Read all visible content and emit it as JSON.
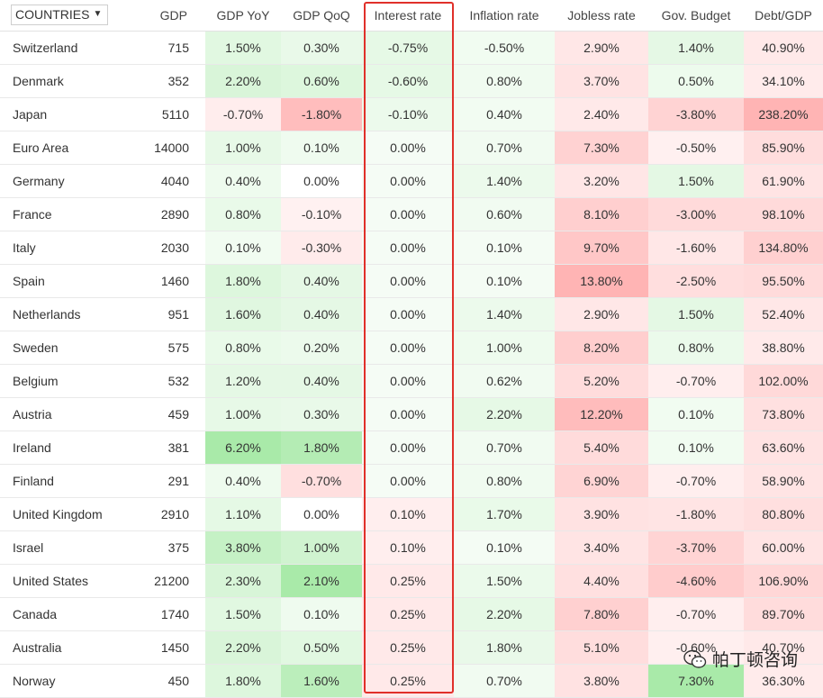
{
  "header": {
    "countries_dropdown": "COUNTRIES",
    "columns": [
      "GDP",
      "GDP YoY",
      "GDP QoQ",
      "Interest rate",
      "Inflation rate",
      "Jobless rate",
      "Gov. Budget",
      "Debt/GDP"
    ]
  },
  "rows": [
    {
      "country": "Switzerland",
      "gdp": "715",
      "gdp_yoy": "1.50%",
      "gdp_qoq": "0.30%",
      "interest_rate": "-0.75%",
      "inflation_rate": "-0.50%",
      "jobless_rate": "2.90%",
      "gov_budget": "1.40%",
      "debt_gdp": "40.90%"
    },
    {
      "country": "Denmark",
      "gdp": "352",
      "gdp_yoy": "2.20%",
      "gdp_qoq": "0.60%",
      "interest_rate": "-0.60%",
      "inflation_rate": "0.80%",
      "jobless_rate": "3.70%",
      "gov_budget": "0.50%",
      "debt_gdp": "34.10%"
    },
    {
      "country": "Japan",
      "gdp": "5110",
      "gdp_yoy": "-0.70%",
      "gdp_qoq": "-1.80%",
      "interest_rate": "-0.10%",
      "inflation_rate": "0.40%",
      "jobless_rate": "2.40%",
      "gov_budget": "-3.80%",
      "debt_gdp": "238.20%"
    },
    {
      "country": "Euro Area",
      "gdp": "14000",
      "gdp_yoy": "1.00%",
      "gdp_qoq": "0.10%",
      "interest_rate": "0.00%",
      "inflation_rate": "0.70%",
      "jobless_rate": "7.30%",
      "gov_budget": "-0.50%",
      "debt_gdp": "85.90%"
    },
    {
      "country": "Germany",
      "gdp": "4040",
      "gdp_yoy": "0.40%",
      "gdp_qoq": "0.00%",
      "interest_rate": "0.00%",
      "inflation_rate": "1.40%",
      "jobless_rate": "3.20%",
      "gov_budget": "1.50%",
      "debt_gdp": "61.90%"
    },
    {
      "country": "France",
      "gdp": "2890",
      "gdp_yoy": "0.80%",
      "gdp_qoq": "-0.10%",
      "interest_rate": "0.00%",
      "inflation_rate": "0.60%",
      "jobless_rate": "8.10%",
      "gov_budget": "-3.00%",
      "debt_gdp": "98.10%"
    },
    {
      "country": "Italy",
      "gdp": "2030",
      "gdp_yoy": "0.10%",
      "gdp_qoq": "-0.30%",
      "interest_rate": "0.00%",
      "inflation_rate": "0.10%",
      "jobless_rate": "9.70%",
      "gov_budget": "-1.60%",
      "debt_gdp": "134.80%"
    },
    {
      "country": "Spain",
      "gdp": "1460",
      "gdp_yoy": "1.80%",
      "gdp_qoq": "0.40%",
      "interest_rate": "0.00%",
      "inflation_rate": "0.10%",
      "jobless_rate": "13.80%",
      "gov_budget": "-2.50%",
      "debt_gdp": "95.50%"
    },
    {
      "country": "Netherlands",
      "gdp": "951",
      "gdp_yoy": "1.60%",
      "gdp_qoq": "0.40%",
      "interest_rate": "0.00%",
      "inflation_rate": "1.40%",
      "jobless_rate": "2.90%",
      "gov_budget": "1.50%",
      "debt_gdp": "52.40%"
    },
    {
      "country": "Sweden",
      "gdp": "575",
      "gdp_yoy": "0.80%",
      "gdp_qoq": "0.20%",
      "interest_rate": "0.00%",
      "inflation_rate": "1.00%",
      "jobless_rate": "8.20%",
      "gov_budget": "0.80%",
      "debt_gdp": "38.80%"
    },
    {
      "country": "Belgium",
      "gdp": "532",
      "gdp_yoy": "1.20%",
      "gdp_qoq": "0.40%",
      "interest_rate": "0.00%",
      "inflation_rate": "0.62%",
      "jobless_rate": "5.20%",
      "gov_budget": "-0.70%",
      "debt_gdp": "102.00%"
    },
    {
      "country": "Austria",
      "gdp": "459",
      "gdp_yoy": "1.00%",
      "gdp_qoq": "0.30%",
      "interest_rate": "0.00%",
      "inflation_rate": "2.20%",
      "jobless_rate": "12.20%",
      "gov_budget": "0.10%",
      "debt_gdp": "73.80%"
    },
    {
      "country": "Ireland",
      "gdp": "381",
      "gdp_yoy": "6.20%",
      "gdp_qoq": "1.80%",
      "interest_rate": "0.00%",
      "inflation_rate": "0.70%",
      "jobless_rate": "5.40%",
      "gov_budget": "0.10%",
      "debt_gdp": "63.60%"
    },
    {
      "country": "Finland",
      "gdp": "291",
      "gdp_yoy": "0.40%",
      "gdp_qoq": "-0.70%",
      "interest_rate": "0.00%",
      "inflation_rate": "0.80%",
      "jobless_rate": "6.90%",
      "gov_budget": "-0.70%",
      "debt_gdp": "58.90%"
    },
    {
      "country": "United Kingdom",
      "gdp": "2910",
      "gdp_yoy": "1.10%",
      "gdp_qoq": "0.00%",
      "interest_rate": "0.10%",
      "inflation_rate": "1.70%",
      "jobless_rate": "3.90%",
      "gov_budget": "-1.80%",
      "debt_gdp": "80.80%"
    },
    {
      "country": "Israel",
      "gdp": "375",
      "gdp_yoy": "3.80%",
      "gdp_qoq": "1.00%",
      "interest_rate": "0.10%",
      "inflation_rate": "0.10%",
      "jobless_rate": "3.40%",
      "gov_budget": "-3.70%",
      "debt_gdp": "60.00%"
    },
    {
      "country": "United States",
      "gdp": "21200",
      "gdp_yoy": "2.30%",
      "gdp_qoq": "2.10%",
      "interest_rate": "0.25%",
      "inflation_rate": "1.50%",
      "jobless_rate": "4.40%",
      "gov_budget": "-4.60%",
      "debt_gdp": "106.90%"
    },
    {
      "country": "Canada",
      "gdp": "1740",
      "gdp_yoy": "1.50%",
      "gdp_qoq": "0.10%",
      "interest_rate": "0.25%",
      "inflation_rate": "2.20%",
      "jobless_rate": "7.80%",
      "gov_budget": "-0.70%",
      "debt_gdp": "89.70%"
    },
    {
      "country": "Australia",
      "gdp": "1450",
      "gdp_yoy": "2.20%",
      "gdp_qoq": "0.50%",
      "interest_rate": "0.25%",
      "inflation_rate": "1.80%",
      "jobless_rate": "5.10%",
      "gov_budget": "-0.60%",
      "debt_gdp": "40.70%"
    },
    {
      "country": "Norway",
      "gdp": "450",
      "gdp_yoy": "1.80%",
      "gdp_qoq": "1.60%",
      "interest_rate": "0.25%",
      "inflation_rate": "0.70%",
      "jobless_rate": "3.80%",
      "gov_budget": "7.30%",
      "debt_gdp": "36.30%"
    }
  ],
  "watermark": {
    "text": "帕丁顿咨询",
    "icon": "wechat-icon"
  },
  "colors": {
    "highlight_border": "#e0302a",
    "positive_tint": "#33cc33",
    "negative_tint": "#ff4d4d",
    "row_divider": "#e9e9e9"
  }
}
